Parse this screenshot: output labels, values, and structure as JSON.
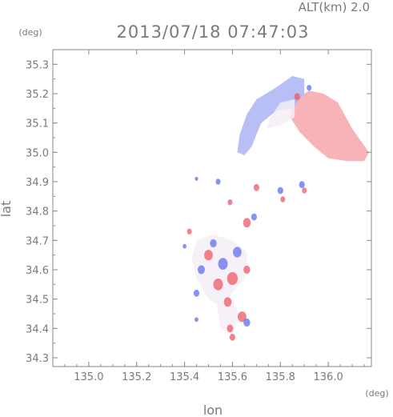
{
  "chart_data": {
    "type": "heatmap",
    "title": "2013/07/18 07:47:03",
    "altitude_label": "ALT(km)  2.0",
    "xlabel": "lon",
    "ylabel": "lat",
    "x_unit": "(deg)",
    "y_unit": "(deg)",
    "xlim": [
      134.85,
      136.18
    ],
    "ylim": [
      34.27,
      35.35
    ],
    "x_ticks": [
      135.0,
      135.2,
      135.4,
      135.6,
      135.8,
      136.0
    ],
    "x_tick_labels": [
      "135.0",
      "135.2",
      "135.4",
      "135.6",
      "135.8",
      "136.0"
    ],
    "y_ticks": [
      34.3,
      34.4,
      34.5,
      34.6,
      34.7,
      34.8,
      34.9,
      35.0,
      35.1,
      35.2,
      35.3
    ],
    "y_tick_labels": [
      "34.3",
      "34.4",
      "34.5",
      "34.6",
      "34.7",
      "34.8",
      "34.9",
      "35.0",
      "35.1",
      "35.2",
      "35.3"
    ],
    "grid": false,
    "colors": {
      "positive": "#f7a6ad",
      "negative": "#aab4f5",
      "neutral": "#f4eef6"
    },
    "regions": [
      {
        "name": "northeast-red",
        "sign": 1,
        "polygon": [
          [
            135.84,
            35.12
          ],
          [
            135.86,
            35.18
          ],
          [
            135.92,
            35.21
          ],
          [
            135.98,
            35.2
          ],
          [
            136.04,
            35.17
          ],
          [
            136.1,
            35.08
          ],
          [
            136.17,
            35.0
          ],
          [
            136.15,
            34.97
          ],
          [
            136.08,
            34.97
          ],
          [
            136.0,
            34.98
          ],
          [
            135.94,
            35.02
          ],
          [
            135.88,
            35.07
          ]
        ]
      },
      {
        "name": "northwest-blue",
        "sign": -1,
        "polygon": [
          [
            135.66,
            35.13
          ],
          [
            135.7,
            35.18
          ],
          [
            135.78,
            35.22
          ],
          [
            135.85,
            35.26
          ],
          [
            135.9,
            35.25
          ],
          [
            135.9,
            35.2
          ],
          [
            135.85,
            35.15
          ],
          [
            135.78,
            35.14
          ],
          [
            135.72,
            35.1
          ],
          [
            135.68,
            35.02
          ],
          [
            135.65,
            34.99
          ],
          [
            135.62,
            35.0
          ],
          [
            135.63,
            35.06
          ]
        ]
      },
      {
        "name": "northwest-light",
        "sign": -0.4,
        "polygon": [
          [
            135.76,
            35.12
          ],
          [
            135.8,
            35.17
          ],
          [
            135.86,
            35.18
          ],
          [
            135.86,
            35.12
          ],
          [
            135.8,
            35.09
          ],
          [
            135.74,
            35.08
          ]
        ]
      },
      {
        "name": "osaka-core",
        "sign": -0.35,
        "polygon": [
          [
            135.45,
            34.7
          ],
          [
            135.52,
            34.72
          ],
          [
            135.6,
            34.7
          ],
          [
            135.66,
            34.66
          ],
          [
            135.66,
            34.58
          ],
          [
            135.6,
            34.52
          ],
          [
            135.56,
            34.47
          ],
          [
            135.5,
            34.5
          ],
          [
            135.45,
            34.57
          ],
          [
            135.43,
            34.64
          ]
        ]
      },
      {
        "name": "osaka-south",
        "sign": 0.35,
        "polygon": [
          [
            135.53,
            34.5
          ],
          [
            135.6,
            34.5
          ],
          [
            135.63,
            34.44
          ],
          [
            135.6,
            34.38
          ],
          [
            135.55,
            34.4
          ]
        ]
      }
    ],
    "blobs": [
      {
        "lon": 135.5,
        "lat": 34.65,
        "r": 0.018,
        "sign": 1
      },
      {
        "lon": 135.56,
        "lat": 34.62,
        "r": 0.02,
        "sign": -1
      },
      {
        "lon": 135.6,
        "lat": 34.57,
        "r": 0.022,
        "sign": 1
      },
      {
        "lon": 135.47,
        "lat": 34.6,
        "r": 0.015,
        "sign": -1
      },
      {
        "lon": 135.62,
        "lat": 34.66,
        "r": 0.018,
        "sign": -1
      },
      {
        "lon": 135.54,
        "lat": 34.55,
        "r": 0.02,
        "sign": 1
      },
      {
        "lon": 135.58,
        "lat": 34.49,
        "r": 0.016,
        "sign": 1
      },
      {
        "lon": 135.66,
        "lat": 34.6,
        "r": 0.014,
        "sign": 1
      },
      {
        "lon": 135.52,
        "lat": 34.69,
        "r": 0.014,
        "sign": -1
      },
      {
        "lon": 135.45,
        "lat": 34.52,
        "r": 0.012,
        "sign": -1
      },
      {
        "lon": 135.64,
        "lat": 34.44,
        "r": 0.018,
        "sign": 1
      },
      {
        "lon": 135.59,
        "lat": 34.4,
        "r": 0.013,
        "sign": 1
      },
      {
        "lon": 135.6,
        "lat": 34.37,
        "r": 0.012,
        "sign": 1
      },
      {
        "lon": 135.66,
        "lat": 34.42,
        "r": 0.014,
        "sign": -1
      },
      {
        "lon": 135.66,
        "lat": 34.76,
        "r": 0.016,
        "sign": 1
      },
      {
        "lon": 135.69,
        "lat": 34.78,
        "r": 0.012,
        "sign": -1
      },
      {
        "lon": 135.7,
        "lat": 34.88,
        "r": 0.012,
        "sign": 1
      },
      {
        "lon": 135.8,
        "lat": 34.87,
        "r": 0.012,
        "sign": -1
      },
      {
        "lon": 135.81,
        "lat": 34.84,
        "r": 0.01,
        "sign": 1
      },
      {
        "lon": 135.89,
        "lat": 34.89,
        "r": 0.012,
        "sign": -1
      },
      {
        "lon": 135.9,
        "lat": 34.87,
        "r": 0.01,
        "sign": 1
      },
      {
        "lon": 135.54,
        "lat": 34.9,
        "r": 0.01,
        "sign": -1
      },
      {
        "lon": 135.59,
        "lat": 34.83,
        "r": 0.01,
        "sign": 1
      },
      {
        "lon": 135.45,
        "lat": 34.91,
        "r": 0.007,
        "sign": -1
      },
      {
        "lon": 135.87,
        "lat": 35.19,
        "r": 0.012,
        "sign": 1
      },
      {
        "lon": 135.92,
        "lat": 35.22,
        "r": 0.01,
        "sign": -1
      },
      {
        "lon": 135.42,
        "lat": 34.73,
        "r": 0.01,
        "sign": 1
      },
      {
        "lon": 135.4,
        "lat": 34.68,
        "r": 0.008,
        "sign": -1
      },
      {
        "lon": 135.45,
        "lat": 34.43,
        "r": 0.008,
        "sign": -1
      }
    ]
  }
}
